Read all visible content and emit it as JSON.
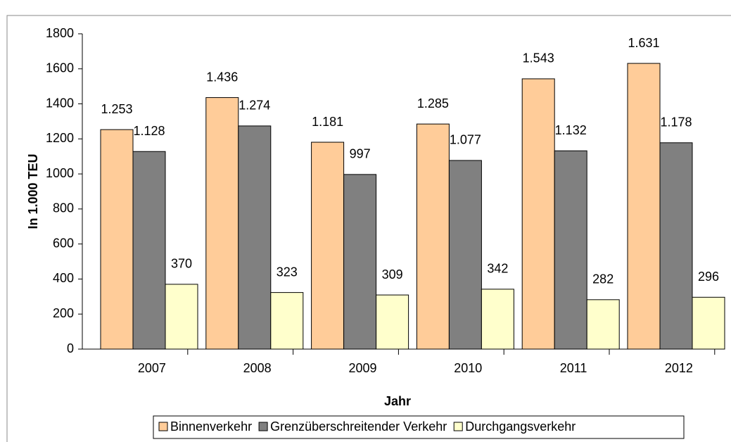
{
  "chart_data": {
    "type": "bar",
    "categories": [
      "2007",
      "2008",
      "2009",
      "2010",
      "2011",
      "2012"
    ],
    "series": [
      {
        "name": "Binnenverkehr",
        "color": "#ffcc99",
        "values": [
          1253,
          1436,
          1181,
          1285,
          1543,
          1631
        ],
        "value_labels": [
          "1.253",
          "1.436",
          "1.181",
          "1.285",
          "1.543",
          "1.631"
        ]
      },
      {
        "name": "Grenzüberschreitender Verkehr",
        "color": "#808080",
        "values": [
          1128,
          1274,
          997,
          1077,
          1132,
          1178
        ],
        "value_labels": [
          "1.128",
          "1.274",
          "997",
          "1.077",
          "1.132",
          "1.178"
        ]
      },
      {
        "name": "Durchgangsverkehr",
        "color": "#ffffcc",
        "values": [
          370,
          323,
          309,
          342,
          282,
          296
        ]
      }
    ],
    "ylim": [
      0,
      1800
    ],
    "yticks": [
      0,
      200,
      400,
      600,
      800,
      1000,
      1200,
      1400,
      1600,
      1800
    ],
    "ylabel": "In 1.000 TEU",
    "xlabel": "Jahr",
    "legend": "bottom"
  }
}
